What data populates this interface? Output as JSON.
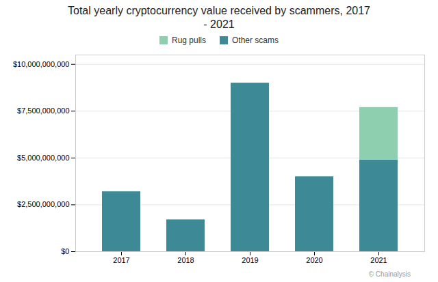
{
  "chart_data": {
    "type": "bar",
    "stacked": true,
    "title": "Total yearly cryptocurrency value received by scammers, 2017\n - 2021",
    "categories": [
      "2017",
      "2018",
      "2019",
      "2020",
      "2021"
    ],
    "series": [
      {
        "name": "Other scams",
        "color": "#3d8a96",
        "values": [
          3200000000,
          1700000000,
          9000000000,
          4000000000,
          4900000000
        ]
      },
      {
        "name": "Rug pulls",
        "color": "#8ecfb0",
        "values": [
          0,
          0,
          0,
          0,
          2800000000
        ]
      }
    ],
    "ylim": [
      0,
      10500000000
    ],
    "yticks": [
      {
        "value": 0,
        "label": "$0"
      },
      {
        "value": 2500000000,
        "label": "$2,500,000,000"
      },
      {
        "value": 5000000000,
        "label": "$5,000,000,000"
      },
      {
        "value": 7500000000,
        "label": "$7,500,000,000"
      },
      {
        "value": 10000000000,
        "label": "$10,000,000,000"
      }
    ],
    "grid": true,
    "legend": "top",
    "caption": "© Chainalysis"
  }
}
